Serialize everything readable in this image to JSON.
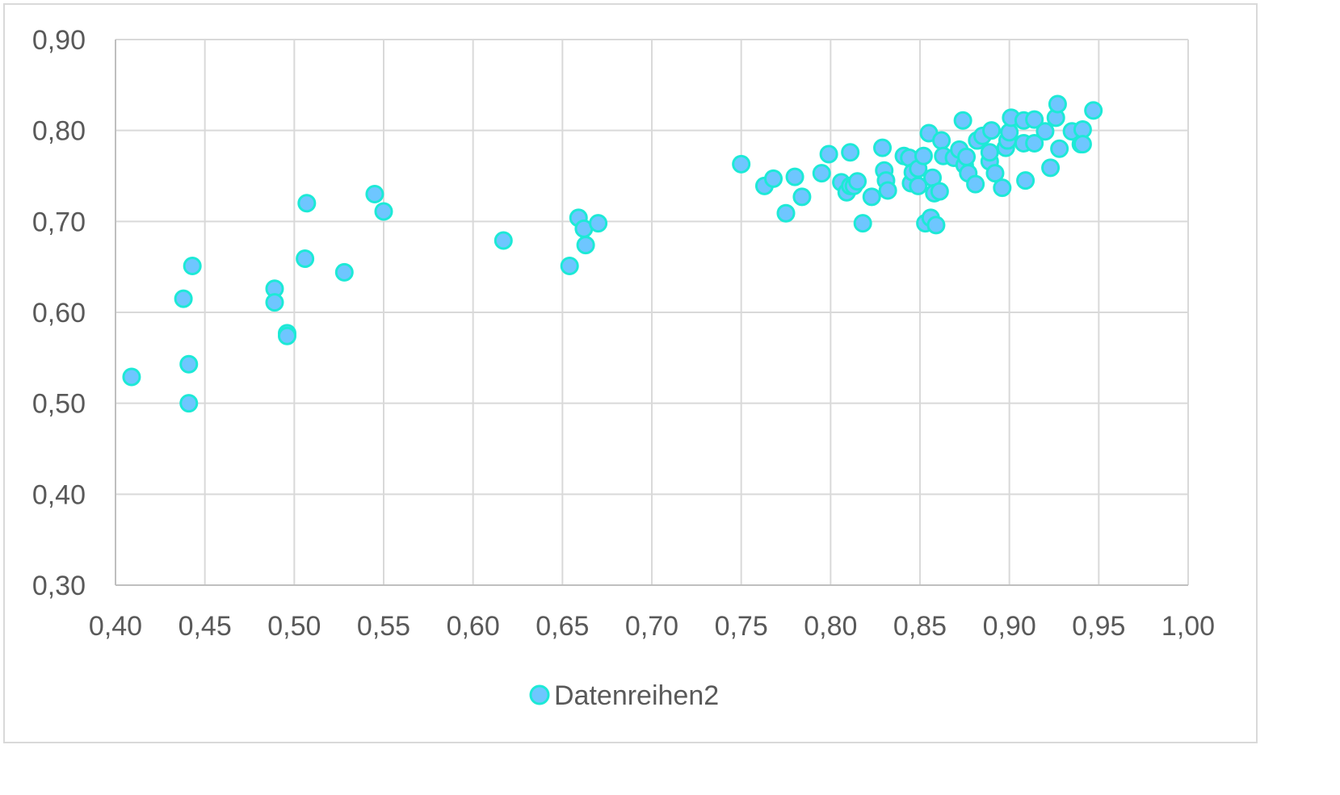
{
  "chart_data": {
    "type": "scatter",
    "title": "",
    "xlabel": "",
    "ylabel": "",
    "xlim": [
      0.4,
      1.0
    ],
    "ylim": [
      0.3,
      0.9
    ],
    "x_ticks": [
      0.4,
      0.45,
      0.5,
      0.55,
      0.6,
      0.65,
      0.7,
      0.75,
      0.8,
      0.85,
      0.9,
      0.95,
      1.0
    ],
    "y_ticks": [
      0.3,
      0.4,
      0.5,
      0.6,
      0.7,
      0.8,
      0.9
    ],
    "x_tick_labels": [
      "0,40",
      "0,45",
      "0,50",
      "0,55",
      "0,60",
      "0,65",
      "0,70",
      "0,75",
      "0,80",
      "0,85",
      "0,90",
      "0,95",
      "1,00"
    ],
    "y_tick_labels": [
      "0,30",
      "0,40",
      "0,50",
      "0,60",
      "0,70",
      "0,80",
      "0,90"
    ],
    "grid": true,
    "legend_position": "bottom",
    "colors": {
      "marker_fill": "#6ec6ff",
      "marker_stroke": "#1de9d6",
      "grid": "#d9d9d9",
      "axis_text": "#595959"
    },
    "series": [
      {
        "name": "Datenreihen2",
        "points": [
          [
            0.409,
            0.529
          ],
          [
            0.438,
            0.615
          ],
          [
            0.441,
            0.543
          ],
          [
            0.441,
            0.5
          ],
          [
            0.443,
            0.651
          ],
          [
            0.489,
            0.626
          ],
          [
            0.489,
            0.611
          ],
          [
            0.496,
            0.577
          ],
          [
            0.496,
            0.574
          ],
          [
            0.506,
            0.659
          ],
          [
            0.507,
            0.72
          ],
          [
            0.528,
            0.644
          ],
          [
            0.545,
            0.73
          ],
          [
            0.55,
            0.711
          ],
          [
            0.617,
            0.679
          ],
          [
            0.654,
            0.651
          ],
          [
            0.659,
            0.704
          ],
          [
            0.662,
            0.692
          ],
          [
            0.663,
            0.674
          ],
          [
            0.67,
            0.698
          ],
          [
            0.75,
            0.763
          ],
          [
            0.763,
            0.739
          ],
          [
            0.768,
            0.747
          ],
          [
            0.775,
            0.709
          ],
          [
            0.78,
            0.749
          ],
          [
            0.784,
            0.727
          ],
          [
            0.795,
            0.753
          ],
          [
            0.799,
            0.774
          ],
          [
            0.806,
            0.743
          ],
          [
            0.809,
            0.732
          ],
          [
            0.811,
            0.739
          ],
          [
            0.811,
            0.776
          ],
          [
            0.813,
            0.739
          ],
          [
            0.815,
            0.744
          ],
          [
            0.818,
            0.698
          ],
          [
            0.823,
            0.727
          ],
          [
            0.829,
            0.781
          ],
          [
            0.83,
            0.756
          ],
          [
            0.831,
            0.745
          ],
          [
            0.832,
            0.734
          ],
          [
            0.841,
            0.772
          ],
          [
            0.844,
            0.77
          ],
          [
            0.845,
            0.742
          ],
          [
            0.846,
            0.754
          ],
          [
            0.849,
            0.758
          ],
          [
            0.849,
            0.739
          ],
          [
            0.852,
            0.772
          ],
          [
            0.853,
            0.698
          ],
          [
            0.855,
            0.797
          ],
          [
            0.856,
            0.704
          ],
          [
            0.857,
            0.748
          ],
          [
            0.858,
            0.731
          ],
          [
            0.859,
            0.696
          ],
          [
            0.861,
            0.733
          ],
          [
            0.862,
            0.789
          ],
          [
            0.863,
            0.772
          ],
          [
            0.869,
            0.77
          ],
          [
            0.872,
            0.779
          ],
          [
            0.874,
            0.811
          ],
          [
            0.875,
            0.762
          ],
          [
            0.876,
            0.771
          ],
          [
            0.877,
            0.753
          ],
          [
            0.881,
            0.741
          ],
          [
            0.882,
            0.789
          ],
          [
            0.885,
            0.794
          ],
          [
            0.889,
            0.766
          ],
          [
            0.889,
            0.776
          ],
          [
            0.89,
            0.8
          ],
          [
            0.892,
            0.753
          ],
          [
            0.896,
            0.737
          ],
          [
            0.898,
            0.781
          ],
          [
            0.899,
            0.789
          ],
          [
            0.9,
            0.798
          ],
          [
            0.901,
            0.814
          ],
          [
            0.908,
            0.811
          ],
          [
            0.908,
            0.786
          ],
          [
            0.909,
            0.745
          ],
          [
            0.914,
            0.812
          ],
          [
            0.914,
            0.786
          ],
          [
            0.92,
            0.799
          ],
          [
            0.923,
            0.759
          ],
          [
            0.926,
            0.814
          ],
          [
            0.927,
            0.829
          ],
          [
            0.928,
            0.78
          ],
          [
            0.935,
            0.799
          ],
          [
            0.94,
            0.785
          ],
          [
            0.941,
            0.801
          ],
          [
            0.941,
            0.785
          ],
          [
            0.947,
            0.822
          ]
        ]
      }
    ]
  },
  "legend": {
    "label": "Datenreihen2"
  }
}
